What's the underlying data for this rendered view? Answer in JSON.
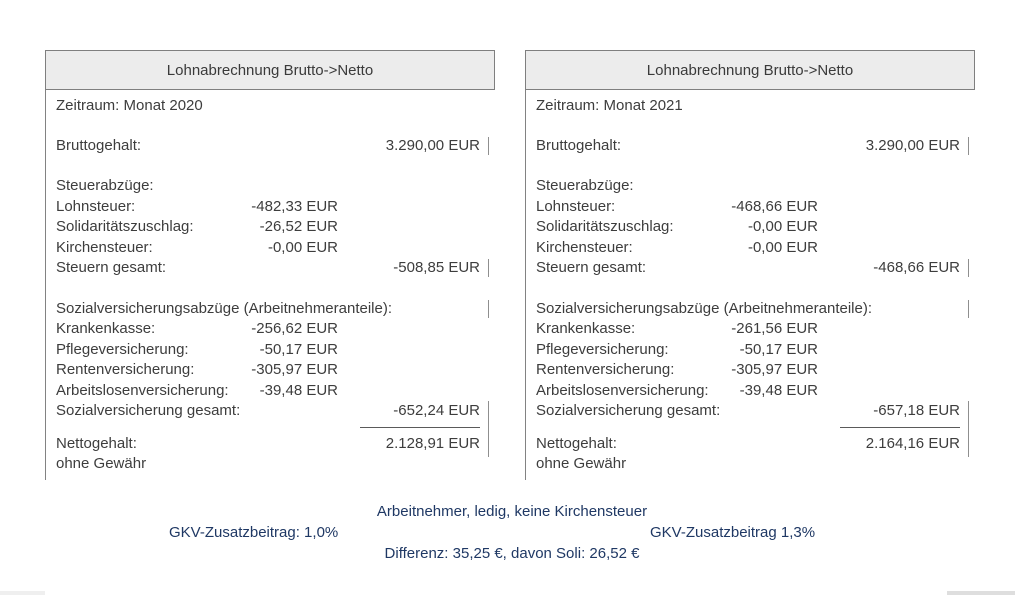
{
  "panels": [
    {
      "title": "Lohnabrechnung Brutto->Netto",
      "period": "Zeitraum: Monat 2020",
      "gross": {
        "label": "Bruttogehalt:",
        "value": "3.290,00 EUR"
      },
      "tax_section_label": "Steuerabzüge:",
      "tax_rows": [
        {
          "label": "Lohnsteuer:",
          "value": "-482,33 EUR"
        },
        {
          "label": "Solidaritätszuschlag:",
          "value": "-26,52 EUR"
        },
        {
          "label": "Kirchensteuer:",
          "value": "-0,00 EUR"
        }
      ],
      "tax_total": {
        "label": "Steuern gesamt:",
        "value": "-508,85 EUR"
      },
      "social_section_label": "Sozialversicherungsabzüge (Arbeitnehmeranteile):",
      "social_rows": [
        {
          "label": "Krankenkasse:",
          "value": "-256,62 EUR"
        },
        {
          "label": "Pflegeversicherung:",
          "value": "-50,17 EUR"
        },
        {
          "label": "Rentenversicherung:",
          "value": "-305,97 EUR"
        },
        {
          "label": "Arbeitslosenversicherung:",
          "value": "-39,48 EUR"
        }
      ],
      "social_total": {
        "label": "Sozialversicherung gesamt:",
        "value": "-652,24 EUR"
      },
      "net": {
        "label": "Nettogehalt:",
        "value": "2.128,91 EUR"
      },
      "disclaimer": "ohne Gewähr"
    },
    {
      "title": "Lohnabrechnung Brutto->Netto",
      "period": "Zeitraum: Monat 2021",
      "gross": {
        "label": "Bruttogehalt:",
        "value": "3.290,00 EUR"
      },
      "tax_section_label": "Steuerabzüge:",
      "tax_rows": [
        {
          "label": "Lohnsteuer:",
          "value": "-468,66 EUR"
        },
        {
          "label": "Solidaritätszuschlag:",
          "value": "-0,00 EUR"
        },
        {
          "label": "Kirchensteuer:",
          "value": "-0,00 EUR"
        }
      ],
      "tax_total": {
        "label": "Steuern gesamt:",
        "value": "-468,66 EUR"
      },
      "social_section_label": "Sozialversicherungsabzüge (Arbeitnehmeranteile):",
      "social_rows": [
        {
          "label": "Krankenkasse:",
          "value": "-261,56 EUR"
        },
        {
          "label": "Pflegeversicherung:",
          "value": "-50,17 EUR"
        },
        {
          "label": "Rentenversicherung:",
          "value": "-305,97 EUR"
        },
        {
          "label": "Arbeitslosenversicherung:",
          "value": "-39,48 EUR"
        }
      ],
      "social_total": {
        "label": "Sozialversicherung gesamt:",
        "value": "-657,18 EUR"
      },
      "net": {
        "label": "Nettogehalt:",
        "value": "2.164,16 EUR"
      },
      "disclaimer": "ohne Gewähr"
    }
  ],
  "footer": {
    "line1": "Arbeitnehmer, ledig, keine Kirchensteuer",
    "left_note": "GKV-Zusatzbeitrag: 1,0%",
    "right_note": "GKV-Zusatzbeitrag 1,3%",
    "line3": "Differenz: 35,25 €, davon Soli: 26,52 €"
  },
  "colors": {
    "accent_blue": "#1f3864",
    "panel_border": "#7f7f7f",
    "header_bg": "#ececec",
    "body_text": "#3d3d3d"
  }
}
